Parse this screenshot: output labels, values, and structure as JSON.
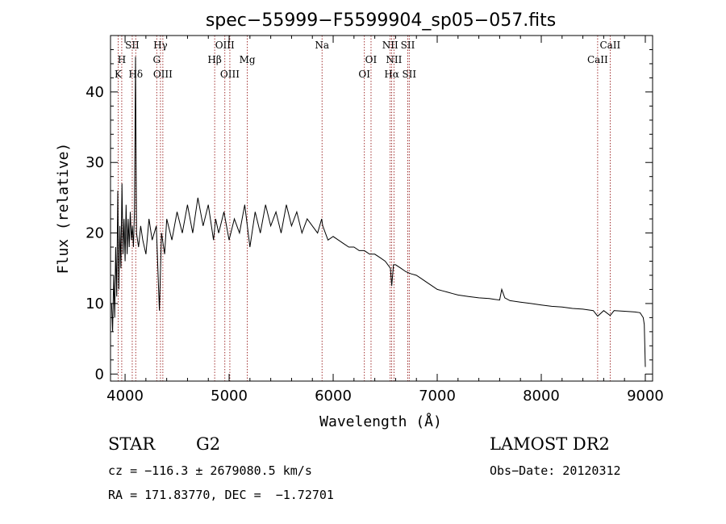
{
  "chart_data": {
    "type": "line",
    "title": "spec−55999−F5599904_sp05−057.fits",
    "xlabel": "Wavelength (Å)",
    "ylabel": "Flux (relative)",
    "xlim": [
      3860,
      9070
    ],
    "ylim": [
      -1,
      48
    ],
    "x_ticks": [
      4000,
      5000,
      6000,
      7000,
      8000,
      9000
    ],
    "y_ticks": [
      0,
      10,
      20,
      30,
      40
    ],
    "grid": false,
    "series": [
      {
        "color": "#000000",
        "points": [
          [
            3870,
            10
          ],
          [
            3880,
            6
          ],
          [
            3890,
            14
          ],
          [
            3900,
            8
          ],
          [
            3910,
            18
          ],
          [
            3920,
            11
          ],
          [
            3930,
            26
          ],
          [
            3940,
            12
          ],
          [
            3950,
            21
          ],
          [
            3960,
            15
          ],
          [
            3970,
            27
          ],
          [
            3980,
            17
          ],
          [
            3990,
            22
          ],
          [
            4000,
            16
          ],
          [
            4010,
            24
          ],
          [
            4020,
            17
          ],
          [
            4030,
            22
          ],
          [
            4040,
            18
          ],
          [
            4050,
            23
          ],
          [
            4060,
            19
          ],
          [
            4070,
            21
          ],
          [
            4080,
            18
          ],
          [
            4090,
            23
          ],
          [
            4100,
            45
          ],
          [
            4110,
            20
          ],
          [
            4130,
            18
          ],
          [
            4150,
            21
          ],
          [
            4170,
            19
          ],
          [
            4200,
            17
          ],
          [
            4230,
            22
          ],
          [
            4260,
            19
          ],
          [
            4300,
            21
          ],
          [
            4330,
            9
          ],
          [
            4350,
            20
          ],
          [
            4380,
            17
          ],
          [
            4400,
            22
          ],
          [
            4450,
            19
          ],
          [
            4500,
            23
          ],
          [
            4550,
            20
          ],
          [
            4600,
            24
          ],
          [
            4650,
            20
          ],
          [
            4700,
            25
          ],
          [
            4750,
            21
          ],
          [
            4800,
            24
          ],
          [
            4850,
            19
          ],
          [
            4870,
            22
          ],
          [
            4900,
            20
          ],
          [
            4950,
            23
          ],
          [
            5000,
            19
          ],
          [
            5050,
            22
          ],
          [
            5100,
            20
          ],
          [
            5150,
            24
          ],
          [
            5200,
            18
          ],
          [
            5250,
            23
          ],
          [
            5300,
            20
          ],
          [
            5350,
            24
          ],
          [
            5400,
            21
          ],
          [
            5450,
            23
          ],
          [
            5500,
            20
          ],
          [
            5550,
            24
          ],
          [
            5600,
            21
          ],
          [
            5650,
            23
          ],
          [
            5700,
            20
          ],
          [
            5750,
            22
          ],
          [
            5800,
            21
          ],
          [
            5850,
            20
          ],
          [
            5890,
            22
          ],
          [
            5900,
            21
          ],
          [
            5950,
            19
          ],
          [
            6000,
            19.5
          ],
          [
            6050,
            19
          ],
          [
            6100,
            18.5
          ],
          [
            6150,
            18
          ],
          [
            6200,
            18
          ],
          [
            6250,
            17.5
          ],
          [
            6300,
            17.5
          ],
          [
            6350,
            17
          ],
          [
            6400,
            17
          ],
          [
            6450,
            16.5
          ],
          [
            6500,
            16
          ],
          [
            6550,
            15
          ],
          [
            6563,
            12.5
          ],
          [
            6580,
            15.5
          ],
          [
            6600,
            15.5
          ],
          [
            6650,
            15
          ],
          [
            6700,
            14.5
          ],
          [
            6750,
            14.2
          ],
          [
            6800,
            14
          ],
          [
            6850,
            13.5
          ],
          [
            6900,
            13
          ],
          [
            6950,
            12.5
          ],
          [
            7000,
            12
          ],
          [
            7050,
            11.8
          ],
          [
            7100,
            11.6
          ],
          [
            7150,
            11.4
          ],
          [
            7200,
            11.2
          ],
          [
            7300,
            11
          ],
          [
            7400,
            10.8
          ],
          [
            7500,
            10.7
          ],
          [
            7550,
            10.6
          ],
          [
            7600,
            10.5
          ],
          [
            7620,
            12
          ],
          [
            7650,
            10.8
          ],
          [
            7700,
            10.4
          ],
          [
            7800,
            10.2
          ],
          [
            7900,
            10
          ],
          [
            8000,
            9.8
          ],
          [
            8100,
            9.6
          ],
          [
            8200,
            9.5
          ],
          [
            8300,
            9.3
          ],
          [
            8400,
            9.2
          ],
          [
            8500,
            9
          ],
          [
            8542,
            8.2
          ],
          [
            8600,
            9
          ],
          [
            8662,
            8.3
          ],
          [
            8700,
            9
          ],
          [
            8800,
            8.9
          ],
          [
            8900,
            8.8
          ],
          [
            8950,
            8.7
          ],
          [
            8980,
            8
          ],
          [
            8990,
            7
          ],
          [
            9000,
            1
          ]
        ]
      }
    ],
    "emission_lines": [
      {
        "label": "SII",
        "wavelength": 4069,
        "row": 1
      },
      {
        "label": "Hγ",
        "wavelength": 4340,
        "row": 1
      },
      {
        "label": "OIII",
        "wavelength": 4959,
        "row": 1
      },
      {
        "label": "Na",
        "wavelength": 5893,
        "row": 1
      },
      {
        "label": "NII",
        "wavelength": 6548,
        "row": 1
      },
      {
        "label": "SII",
        "wavelength": 6717,
        "row": 1
      },
      {
        "label": "CaII",
        "wavelength": 8662,
        "row": 1
      },
      {
        "label": "H",
        "wavelength": 3968,
        "row": 2
      },
      {
        "label": "G",
        "wavelength": 4304,
        "row": 2
      },
      {
        "label": "Hβ",
        "wavelength": 4861,
        "row": 2
      },
      {
        "label": "Mg",
        "wavelength": 5175,
        "row": 2
      },
      {
        "label": "OI",
        "wavelength": 6364,
        "row": 2
      },
      {
        "label": "NII",
        "wavelength": 6584,
        "row": 2
      },
      {
        "label": "CaII",
        "wavelength": 8542,
        "row": 2
      },
      {
        "label": "K",
        "wavelength": 3934,
        "row": 3
      },
      {
        "label": "Hδ",
        "wavelength": 4102,
        "row": 3
      },
      {
        "label": "OIII",
        "wavelength": 4363,
        "row": 3
      },
      {
        "label": "OIII",
        "wavelength": 5007,
        "row": 3
      },
      {
        "label": "OI",
        "wavelength": 6300,
        "row": 3
      },
      {
        "label": "Hα",
        "wavelength": 6563,
        "row": 3
      },
      {
        "label": "SII",
        "wavelength": 6731,
        "row": 3
      }
    ],
    "line_marker_color": "#8b0000"
  },
  "footer": {
    "object_class": "STAR",
    "subclass": "G2",
    "survey": "LAMOST DR2",
    "redshift": "cz = −116.3 ± 2679080.5 km/s",
    "obs_date": "Obs−Date: 20120312",
    "coords": "RA = 171.83770, DEC =  −1.72701"
  }
}
